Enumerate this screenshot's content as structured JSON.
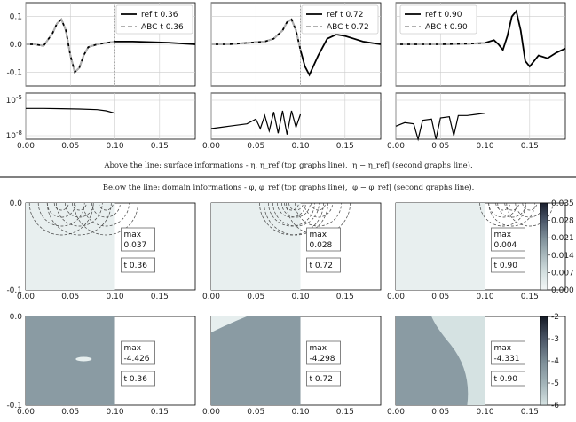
{
  "captions": {
    "above": "Above the line: surface informations - η, η_ref (top graphs line), |η − η_ref| (second graphs line).",
    "below": "Below the line: domain informations - φ, φ_ref (top graphs line), |φ − φ_ref| (second graphs line)."
  },
  "colors": {
    "ref_line": "#000000",
    "abc_line": "#b0b0b0",
    "grid": "#cccccc",
    "domain_fill_top": "#e8efef",
    "domain_fill_bottom": "#8a9ba3",
    "contour": "#444444"
  },
  "chart_data": [
    {
      "type": "line",
      "panel": "surface-1",
      "x": [
        0.0,
        0.01,
        0.02,
        0.03,
        0.035,
        0.04,
        0.045,
        0.05,
        0.055,
        0.06,
        0.065,
        0.07,
        0.08,
        0.09,
        0.1,
        0.12,
        0.14,
        0.16,
        0.19
      ],
      "series": [
        {
          "name": "ref t 0.36",
          "values": [
            0.0,
            0.0,
            -0.005,
            0.04,
            0.075,
            0.09,
            0.05,
            -0.04,
            -0.1,
            -0.085,
            -0.04,
            -0.01,
            0.0,
            0.005,
            0.01,
            0.01,
            0.008,
            0.006,
            0.0
          ]
        },
        {
          "name": "ABC t 0.36",
          "values": [
            0.0,
            0.0,
            -0.005,
            0.04,
            0.075,
            0.09,
            0.05,
            -0.04,
            -0.1,
            -0.085,
            -0.04,
            -0.01,
            0.0,
            0.005,
            0.01,
            null,
            null,
            null,
            null
          ]
        }
      ],
      "xlim": [
        0.0,
        0.19
      ],
      "ylim": [
        -0.15,
        0.15
      ],
      "yticks": [
        "0.1",
        "0.0",
        "-0.1"
      ],
      "xticks": [],
      "legend": "top-right",
      "vline_x": 0.1
    },
    {
      "type": "line",
      "panel": "surface-2",
      "x": [
        0.0,
        0.02,
        0.04,
        0.06,
        0.07,
        0.08,
        0.085,
        0.09,
        0.095,
        0.1,
        0.105,
        0.11,
        0.12,
        0.13,
        0.14,
        0.15,
        0.16,
        0.17,
        0.19
      ],
      "series": [
        {
          "name": "ref t 0.72",
          "values": [
            0.0,
            0.0,
            0.005,
            0.01,
            0.02,
            0.05,
            0.08,
            0.09,
            0.05,
            -0.02,
            -0.08,
            -0.11,
            -0.04,
            0.02,
            0.035,
            0.03,
            0.02,
            0.01,
            0.0
          ]
        },
        {
          "name": "ABC t 0.72",
          "values": [
            0.0,
            0.0,
            0.005,
            0.01,
            0.02,
            0.05,
            0.08,
            0.09,
            0.05,
            -0.02,
            null,
            null,
            null,
            null,
            null,
            null,
            null,
            null,
            null
          ]
        }
      ],
      "xlim": [
        0.0,
        0.19
      ],
      "ylim": [
        -0.15,
        0.15
      ],
      "yticks": [],
      "xticks": [],
      "legend": "top-right",
      "vline_x": 0.1
    },
    {
      "type": "line",
      "panel": "surface-3",
      "x": [
        0.0,
        0.05,
        0.08,
        0.1,
        0.11,
        0.115,
        0.12,
        0.125,
        0.13,
        0.135,
        0.14,
        0.145,
        0.15,
        0.16,
        0.17,
        0.18,
        0.19
      ],
      "series": [
        {
          "name": "ref t 0.90",
          "values": [
            0.0,
            0.0,
            0.002,
            0.005,
            0.015,
            0.0,
            -0.02,
            0.03,
            0.1,
            0.12,
            0.05,
            -0.06,
            -0.08,
            -0.04,
            -0.05,
            -0.03,
            -0.015
          ]
        },
        {
          "name": "ABC t 0.90",
          "values": [
            0.0,
            0.0,
            0.002,
            0.005,
            null,
            null,
            null,
            null,
            null,
            null,
            null,
            null,
            null,
            null,
            null,
            null,
            null
          ]
        }
      ],
      "xlim": [
        0.0,
        0.19
      ],
      "ylim": [
        -0.15,
        0.15
      ],
      "yticks": [],
      "xticks": [],
      "legend": "top-left",
      "vline_x": 0.1
    },
    {
      "type": "line",
      "panel": "error-1",
      "x": [
        0.0,
        0.02,
        0.04,
        0.06,
        0.08,
        0.09,
        0.1
      ],
      "series": [
        {
          "values": [
            -5.7,
            -5.7,
            -5.72,
            -5.75,
            -5.8,
            -5.9,
            -6.1
          ]
        }
      ],
      "xlim": [
        0.0,
        0.19
      ],
      "ylim": [
        -8.3,
        -4.4
      ],
      "yscale": "log",
      "yticks": [
        "10^-5",
        "10^-8"
      ],
      "xticks": [
        "0.00",
        "0.05",
        "0.10",
        "0.15"
      ]
    },
    {
      "type": "line",
      "panel": "error-2",
      "x": [
        0.0,
        0.02,
        0.04,
        0.05,
        0.055,
        0.06,
        0.065,
        0.07,
        0.075,
        0.08,
        0.085,
        0.09,
        0.095,
        0.1
      ],
      "series": [
        {
          "values": [
            -7.4,
            -7.2,
            -7.0,
            -6.6,
            -7.4,
            -6.3,
            -7.6,
            -6.0,
            -7.8,
            -5.9,
            -7.9,
            -5.9,
            -7.3,
            -6.2
          ]
        }
      ],
      "xlim": [
        0.0,
        0.19
      ],
      "ylim": [
        -8.3,
        -4.4
      ],
      "yscale": "log",
      "yticks": [],
      "xticks": [
        "0.00",
        "0.05",
        "0.10",
        "0.15"
      ]
    },
    {
      "type": "line",
      "panel": "error-3",
      "x": [
        0.0,
        0.01,
        0.02,
        0.025,
        0.03,
        0.04,
        0.045,
        0.05,
        0.06,
        0.065,
        0.07,
        0.08,
        0.09,
        0.1
      ],
      "series": [
        {
          "values": [
            -7.2,
            -6.9,
            -7.0,
            -8.3,
            -6.7,
            -6.6,
            -8.3,
            -6.5,
            -6.4,
            -8.0,
            -6.3,
            -6.3,
            -6.2,
            -6.1
          ]
        }
      ],
      "xlim": [
        0.0,
        0.19
      ],
      "ylim": [
        -8.3,
        -4.4
      ],
      "yscale": "log",
      "yticks": [],
      "xticks": [
        "0.00",
        "0.05",
        "0.10",
        "0.15"
      ]
    },
    {
      "type": "heatmap",
      "panel": "domain-phi-row",
      "xlim": [
        0.0,
        0.19
      ],
      "ylim": [
        -0.1,
        0.0
      ],
      "xticks": [
        "0.00",
        "0.05",
        "0.10",
        "0.15"
      ],
      "yticks": [
        "0.0",
        "-0.1"
      ],
      "panels": [
        {
          "max_label": "max",
          "max_value": "0.037",
          "time": "t 0.36"
        },
        {
          "max_label": "max",
          "max_value": "0.028",
          "time": "t 0.72"
        },
        {
          "max_label": "max",
          "max_value": "0.004",
          "time": "t 0.90"
        }
      ],
      "colorbar_ticks": [
        "0.035",
        "0.028",
        "0.021",
        "0.014",
        "0.007",
        "0.000"
      ]
    },
    {
      "type": "heatmap",
      "panel": "domain-error-row",
      "xlim": [
        0.0,
        0.19
      ],
      "ylim": [
        -0.1,
        0.0
      ],
      "xticks": [
        "0.00",
        "0.05",
        "0.10",
        "0.15"
      ],
      "yticks": [
        "0.0",
        "-0.1"
      ],
      "panels": [
        {
          "max_label": "max",
          "max_value": "-4.426",
          "time": "t 0.36"
        },
        {
          "max_label": "max",
          "max_value": "-4.298",
          "time": "t 0.72"
        },
        {
          "max_label": "max",
          "max_value": "-4.331",
          "time": "t 0.90"
        }
      ],
      "colorbar_ticks": [
        "-2",
        "-3",
        "-4",
        "-5",
        "-6"
      ]
    }
  ]
}
